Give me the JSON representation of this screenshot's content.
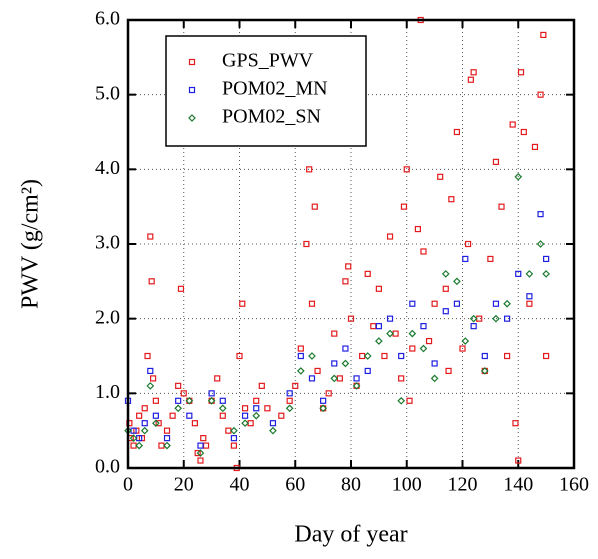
{
  "chart_data": {
    "type": "scatter",
    "xlabel": "Day of year",
    "ylabel": "PWV (g/cm²)",
    "xlim": [
      0,
      160
    ],
    "xticks": [
      0,
      20,
      40,
      60,
      80,
      100,
      120,
      140,
      160
    ],
    "ylim": [
      0,
      6
    ],
    "yticks": [
      {
        "value": 0,
        "label": "0.0"
      },
      {
        "value": 1,
        "label": "1.0"
      },
      {
        "value": 2,
        "label": "2.0"
      },
      {
        "value": 3,
        "label": "3.0"
      },
      {
        "value": 4,
        "label": "4.0"
      },
      {
        "value": 5,
        "label": "5.0"
      },
      {
        "value": 6,
        "label": "6.0"
      }
    ],
    "grid": true,
    "legend": "upper left",
    "series": [
      {
        "name": "GPS_PWV",
        "color": "#e31a1c",
        "marker": "square",
        "x": [
          0.5,
          1,
          2,
          3,
          4,
          5,
          6,
          7,
          8,
          8.5,
          9,
          10,
          11,
          12,
          14,
          16,
          18,
          19,
          20,
          22,
          24,
          25,
          26,
          27,
          28,
          30,
          32,
          34,
          36,
          38,
          39,
          40,
          41,
          42,
          44,
          46,
          48,
          50,
          55,
          58,
          60,
          62,
          64,
          65,
          66,
          67,
          68,
          70,
          72,
          74,
          76,
          78,
          79,
          80,
          82,
          84,
          86,
          88,
          90,
          92,
          94,
          96,
          98,
          99,
          100,
          101,
          102,
          104,
          105,
          106,
          108,
          110,
          112,
          114,
          115,
          116,
          118,
          120,
          122,
          123,
          124,
          126,
          128,
          130,
          132,
          134,
          136,
          138,
          139,
          140,
          141,
          142,
          144,
          146,
          148,
          149,
          150
        ],
        "values": [
          0.6,
          0.4,
          0.3,
          0.5,
          0.7,
          0.4,
          0.8,
          1.5,
          3.1,
          2.5,
          1.2,
          0.9,
          0.6,
          0.3,
          0.5,
          0.7,
          1.1,
          2.4,
          1.0,
          0.9,
          0.6,
          0.2,
          0.1,
          0.4,
          0.3,
          0.9,
          1.2,
          0.7,
          0.5,
          0.3,
          0.0,
          1.5,
          2.2,
          0.8,
          0.6,
          0.9,
          1.1,
          0.8,
          0.7,
          0.9,
          1.1,
          1.6,
          3.0,
          4.0,
          2.2,
          3.5,
          1.3,
          0.8,
          1.0,
          1.8,
          1.2,
          2.5,
          2.7,
          2.0,
          1.1,
          1.5,
          2.6,
          1.9,
          2.4,
          1.5,
          3.1,
          1.8,
          1.2,
          3.5,
          4.0,
          0.9,
          1.6,
          3.2,
          6.0,
          2.9,
          1.7,
          2.2,
          3.9,
          2.4,
          1.3,
          3.6,
          4.5,
          1.6,
          3.0,
          5.2,
          5.3,
          2.0,
          1.3,
          2.8,
          4.1,
          3.5,
          1.5,
          4.6,
          0.6,
          0.1,
          5.3,
          4.5,
          2.2,
          4.3,
          5.0,
          5.8,
          1.5
        ]
      },
      {
        "name": "POM02_MN",
        "color": "#1f1fe0",
        "marker": "square",
        "x": [
          0,
          2,
          4,
          6,
          8,
          10,
          14,
          18,
          22,
          26,
          30,
          34,
          38,
          42,
          46,
          52,
          58,
          62,
          66,
          70,
          74,
          78,
          82,
          86,
          90,
          94,
          98,
          102,
          106,
          110,
          114,
          118,
          121,
          124,
          128,
          132,
          136,
          140,
          144,
          148,
          150
        ],
        "values": [
          0.9,
          0.5,
          0.4,
          0.6,
          1.3,
          0.7,
          0.4,
          0.9,
          0.7,
          0.3,
          1.0,
          0.9,
          0.4,
          0.7,
          0.8,
          0.6,
          1.0,
          1.5,
          1.2,
          0.9,
          1.4,
          1.6,
          1.2,
          1.3,
          1.9,
          2.0,
          1.5,
          2.2,
          1.9,
          1.4,
          2.1,
          2.2,
          2.8,
          1.9,
          1.5,
          2.2,
          2.0,
          2.6,
          2.3,
          3.4,
          2.8
        ]
      },
      {
        "name": "POM02_SN",
        "color": "#1a7a2e",
        "marker": "diamond",
        "x": [
          0,
          2,
          4,
          6,
          8,
          10,
          14,
          18,
          22,
          26,
          30,
          34,
          38,
          42,
          46,
          52,
          58,
          62,
          66,
          70,
          74,
          78,
          82,
          86,
          90,
          94,
          98,
          102,
          106,
          110,
          114,
          118,
          121,
          124,
          128,
          132,
          136,
          140,
          144,
          148,
          150
        ],
        "values": [
          0.5,
          0.4,
          0.3,
          0.5,
          1.1,
          0.6,
          0.3,
          0.8,
          0.9,
          0.2,
          0.9,
          0.8,
          0.5,
          0.6,
          0.7,
          0.5,
          0.8,
          1.3,
          1.5,
          0.8,
          1.2,
          1.4,
          1.1,
          1.5,
          1.7,
          1.8,
          0.9,
          1.8,
          1.6,
          1.2,
          2.6,
          2.5,
          1.7,
          2.0,
          1.3,
          2.0,
          2.2,
          3.9,
          2.6,
          3.0,
          2.6
        ]
      }
    ]
  }
}
